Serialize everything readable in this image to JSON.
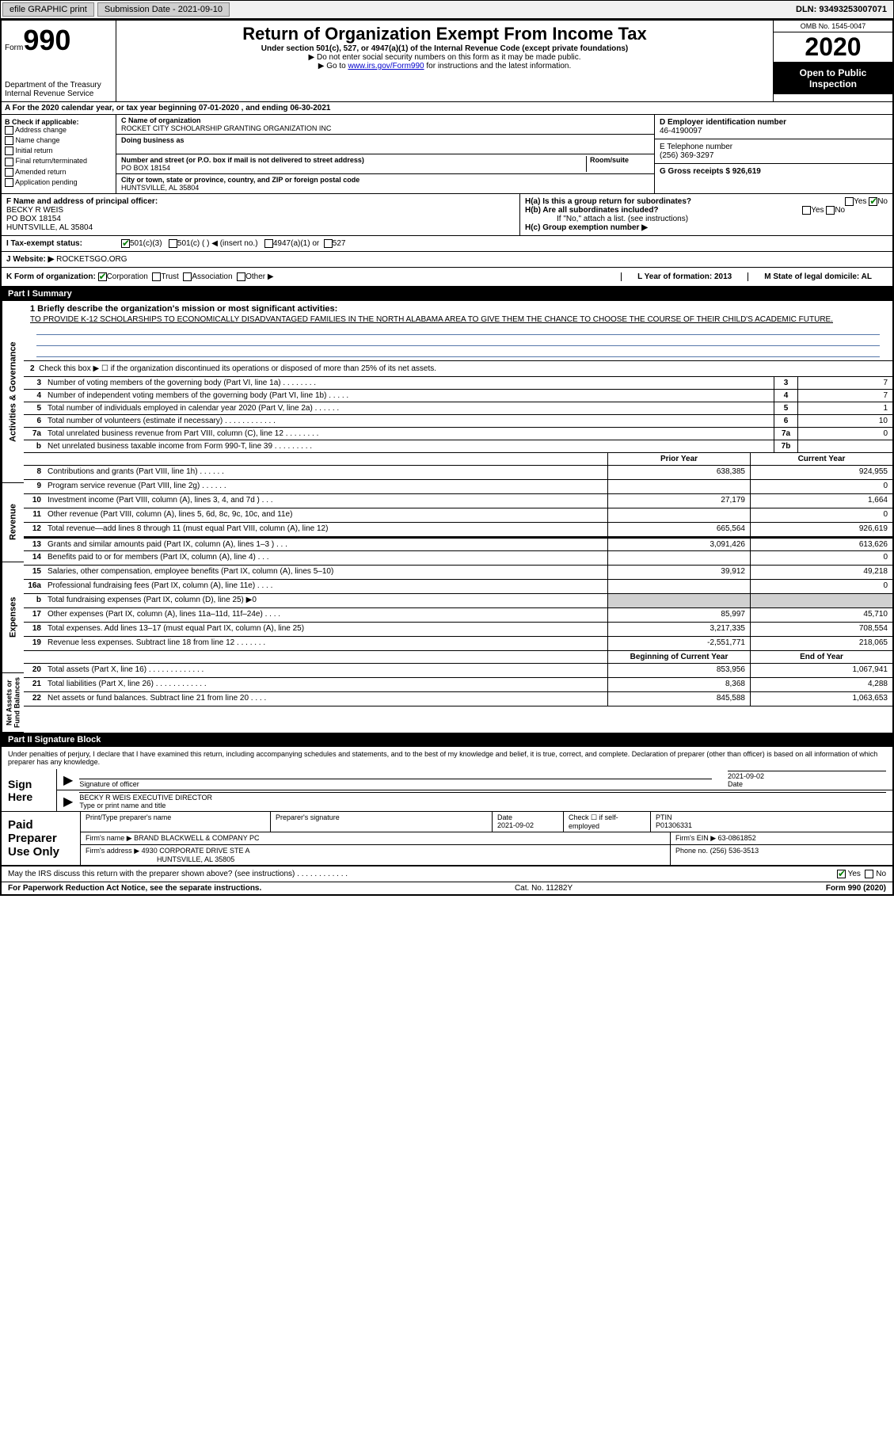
{
  "topbar": {
    "efile": "efile GRAPHIC print",
    "submission_label": "Submission Date - 2021-09-10",
    "dln": "DLN: 93493253007071"
  },
  "header": {
    "form_label": "Form",
    "form_number": "990",
    "title": "Return of Organization Exempt From Income Tax",
    "subtitle": "Under section 501(c), 527, or 4947(a)(1) of the Internal Revenue Code (except private foundations)",
    "note1": "▶ Do not enter social security numbers on this form as it may be made public.",
    "note2_pre": "▶ Go to ",
    "note2_link": "www.irs.gov/Form990",
    "note2_post": " for instructions and the latest information.",
    "omb": "OMB No. 1545-0047",
    "year": "2020",
    "open": "Open to Public Inspection",
    "dept": "Department of the Treasury\nInternal Revenue Service"
  },
  "row_a": "A For the 2020 calendar year, or tax year beginning 07-01-2020    , and ending 06-30-2021",
  "col_b": {
    "title": "B Check if applicable:",
    "items": [
      "Address change",
      "Name change",
      "Initial return",
      "Final return/terminated",
      "Amended return",
      "Application pending"
    ]
  },
  "col_c": {
    "name_label": "C Name of organization",
    "name": "ROCKET CITY SCHOLARSHIP GRANTING ORGANIZATION INC",
    "dba_label": "Doing business as",
    "addr_label": "Number and street (or P.O. box if mail is not delivered to street address)",
    "room_label": "Room/suite",
    "addr": "PO BOX 18154",
    "city_label": "City or town, state or province, country, and ZIP or foreign postal code",
    "city": "HUNTSVILLE, AL  35804"
  },
  "col_d": {
    "ein_label": "D Employer identification number",
    "ein": "46-4190097",
    "phone_label": "E Telephone number",
    "phone": "(256) 369-3297",
    "gross_label": "G Gross receipts $ 926,619"
  },
  "row_f": {
    "label": "F  Name and address of principal officer:",
    "name": "BECKY R WEIS",
    "addr1": "PO BOX 18154",
    "addr2": "HUNTSVILLE, AL  35804"
  },
  "row_h": {
    "ha": "H(a)  Is this a group return for subordinates?",
    "hb": "H(b)  Are all subordinates included?",
    "hb_note": "If \"No,\" attach a list. (see instructions)",
    "hc": "H(c)  Group exemption number ▶"
  },
  "row_i": {
    "label": "I    Tax-exempt status:",
    "opts": [
      "501(c)(3)",
      "501(c) (  ) ◀ (insert no.)",
      "4947(a)(1) or",
      "527"
    ]
  },
  "row_j": {
    "label": "J   Website: ▶",
    "value": "ROCKETSGO.ORG"
  },
  "row_k": {
    "label": "K Form of organization:",
    "opts": [
      "Corporation",
      "Trust",
      "Association",
      "Other ▶"
    ],
    "l_label": "L Year of formation: 2013",
    "m_label": "M State of legal domicile: AL"
  },
  "part1": {
    "header": "Part I      Summary",
    "side_ag": "Activities & Governance",
    "side_rev": "Revenue",
    "side_exp": "Expenses",
    "side_na": "Net Assets or Fund Balances",
    "line1_label": "1  Briefly describe the organization's mission or most significant activities:",
    "mission": "TO PROVIDE K-12 SCHOLARSHIPS TO ECONOMICALLY DISADVANTAGED FAMILIES IN THE NORTH ALABAMA AREA TO GIVE THEM THE CHANCE TO CHOOSE THE COURSE OF THEIR CHILD'S ACADEMIC FUTURE.",
    "line2": "Check this box ▶ ☐  if the organization discontinued its operations or disposed of more than 25% of its net assets.",
    "rows_ag": [
      {
        "n": "3",
        "desc": "Number of voting members of the governing body (Part VI, line 1a)   .    .    .    .    .    .    .    .",
        "box": "3",
        "val": "7"
      },
      {
        "n": "4",
        "desc": "Number of independent voting members of the governing body (Part VI, line 1b)   .    .    .    .    .",
        "box": "4",
        "val": "7"
      },
      {
        "n": "5",
        "desc": "Total number of individuals employed in calendar year 2020 (Part V, line 2a)   .    .    .    .    .    .",
        "box": "5",
        "val": "1"
      },
      {
        "n": "6",
        "desc": "Total number of volunteers (estimate if necessary)     .    .    .    .    .    .    .    .    .    .    .    .",
        "box": "6",
        "val": "10"
      },
      {
        "n": "7a",
        "desc": "Total unrelated business revenue from Part VIII, column (C), line 12   .    .    .    .    .    .    .    .",
        "box": "7a",
        "val": "0"
      },
      {
        "n": "b",
        "desc": "Net unrelated business taxable income from Form 990-T, line 39    .    .    .    .    .    .    .    .    .",
        "box": "7b",
        "val": ""
      }
    ],
    "col_headers": {
      "prior": "Prior Year",
      "current": "Current Year"
    },
    "rows_rev": [
      {
        "n": "8",
        "desc": "Contributions and grants (Part VIII, line 1h)    .    .    .    .    .    .",
        "py": "638,385",
        "cy": "924,955"
      },
      {
        "n": "9",
        "desc": "Program service revenue (Part VIII, line 2g)   .    .    .    .    .    .",
        "py": "",
        "cy": "0"
      },
      {
        "n": "10",
        "desc": "Investment income (Part VIII, column (A), lines 3, 4, and 7d )   .    .    .",
        "py": "27,179",
        "cy": "1,664"
      },
      {
        "n": "11",
        "desc": "Other revenue (Part VIII, column (A), lines 5, 6d, 8c, 9c, 10c, and 11e)",
        "py": "",
        "cy": "0"
      },
      {
        "n": "12",
        "desc": "Total revenue—add lines 8 through 11 (must equal Part VIII, column (A), line 12)",
        "py": "665,564",
        "cy": "926,619"
      }
    ],
    "rows_exp": [
      {
        "n": "13",
        "desc": "Grants and similar amounts paid (Part IX, column (A), lines 1–3 )   .    .    .",
        "py": "3,091,426",
        "cy": "613,626"
      },
      {
        "n": "14",
        "desc": "Benefits paid to or for members (Part IX, column (A), line 4)   .    .    .",
        "py": "",
        "cy": "0"
      },
      {
        "n": "15",
        "desc": "Salaries, other compensation, employee benefits (Part IX, column (A), lines 5–10)",
        "py": "39,912",
        "cy": "49,218"
      },
      {
        "n": "16a",
        "desc": "Professional fundraising fees (Part IX, column (A), line 11e)   .    .    .    .",
        "py": "",
        "cy": "0"
      },
      {
        "n": "b",
        "desc": "Total fundraising expenses (Part IX, column (D), line 25) ▶0",
        "py": "shaded",
        "cy": "shaded"
      },
      {
        "n": "17",
        "desc": "Other expenses (Part IX, column (A), lines 11a–11d, 11f–24e)   .    .    .    .",
        "py": "85,997",
        "cy": "45,710"
      },
      {
        "n": "18",
        "desc": "Total expenses. Add lines 13–17 (must equal Part IX, column (A), line 25)",
        "py": "3,217,335",
        "cy": "708,554"
      },
      {
        "n": "19",
        "desc": "Revenue less expenses. Subtract line 18 from line 12   .    .    .    .    .    .    .",
        "py": "-2,551,771",
        "cy": "218,065"
      }
    ],
    "na_headers": {
      "beg": "Beginning of Current Year",
      "end": "End of Year"
    },
    "rows_na": [
      {
        "n": "20",
        "desc": "Total assets (Part X, line 16)   .    .    .    .    .    .    .    .    .    .    .    .    .",
        "py": "853,956",
        "cy": "1,067,941"
      },
      {
        "n": "21",
        "desc": "Total liabilities (Part X, line 26)   .    .    .    .    .    .    .    .    .    .    .    .",
        "py": "8,368",
        "cy": "4,288"
      },
      {
        "n": "22",
        "desc": "Net assets or fund balances. Subtract line 21 from line 20   .    .    .    .",
        "py": "845,588",
        "cy": "1,063,653"
      }
    ]
  },
  "part2": {
    "header": "Part II      Signature Block",
    "penalty": "Under penalties of perjury, I declare that I have examined this return, including accompanying schedules and statements, and to the best of my knowledge and belief, it is true, correct, and complete. Declaration of preparer (other than officer) is based on all information of which preparer has any knowledge.",
    "sign_here": "Sign Here",
    "sig_officer": "Signature of officer",
    "sig_date": "2021-09-02",
    "date_label": "Date",
    "officer_name": "BECKY R WEIS  EXECUTIVE DIRECTOR",
    "type_label": "Type or print name and title",
    "paid_prep": "Paid Preparer Use Only",
    "prep_name_label": "Print/Type preparer's name",
    "prep_sig_label": "Preparer's signature",
    "prep_date_label": "Date",
    "prep_date": "2021-09-02",
    "check_self": "Check ☐ if self-employed",
    "ptin_label": "PTIN",
    "ptin": "P01306331",
    "firm_name_label": "Firm's name    ▶",
    "firm_name": "BRAND BLACKWELL & COMPANY PC",
    "firm_ein_label": "Firm's EIN ▶",
    "firm_ein": "63-0861852",
    "firm_addr_label": "Firm's address ▶",
    "firm_addr": "4930 CORPORATE DRIVE STE A",
    "firm_city": "HUNTSVILLE, AL  35805",
    "firm_phone_label": "Phone no.",
    "firm_phone": "(256) 536-3513"
  },
  "discuss": "May the IRS discuss this return with the preparer shown above? (see instructions)    .    .    .    .    .    .    .    .    .    .    .    .",
  "footer": {
    "left": "For Paperwork Reduction Act Notice, see the separate instructions.",
    "mid": "Cat. No. 11282Y",
    "right": "Form 990 (2020)"
  }
}
